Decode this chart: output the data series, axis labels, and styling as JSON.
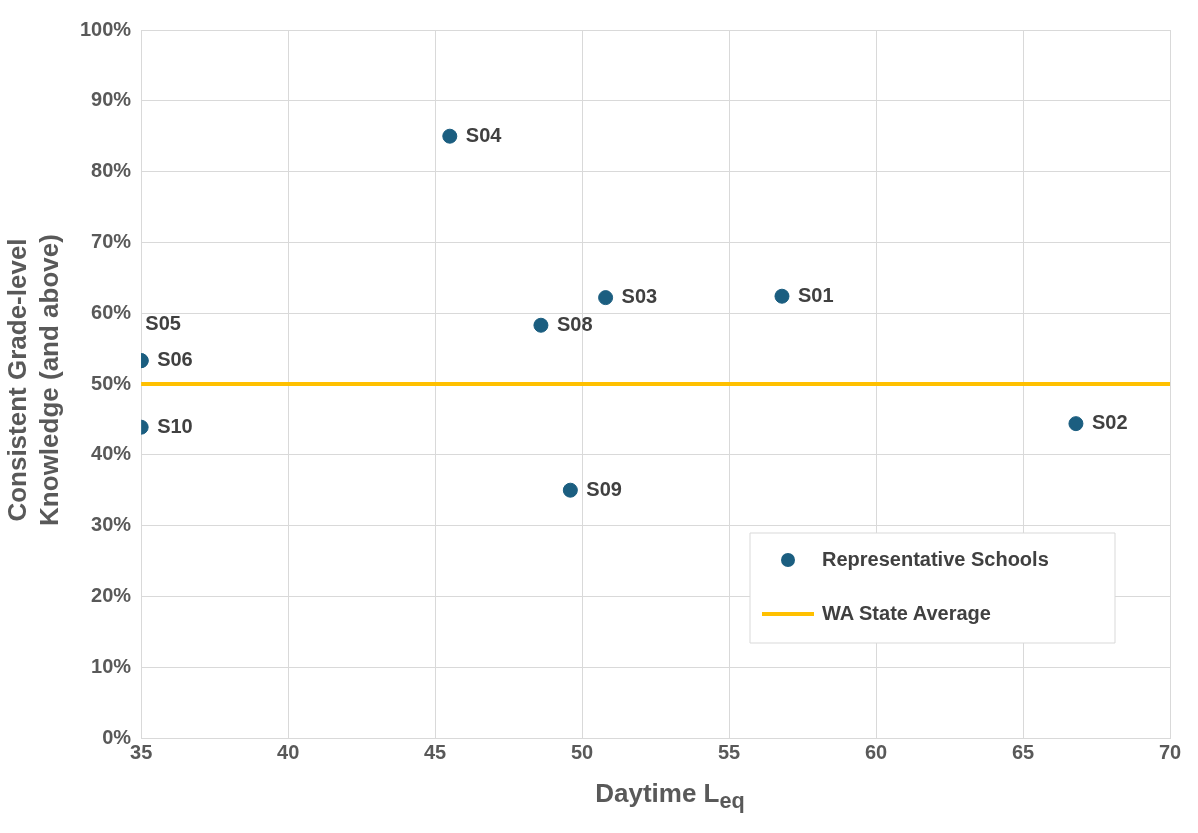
{
  "chart_data": {
    "type": "scatter",
    "xlabel": "Daytime L$_{eq}$",
    "ylabel": "Consistent Grade-level Knowledge (and above)",
    "series": [
      {
        "name": "Representative Schools",
        "color": "#1b5e80",
        "x": [
          56.8,
          66.8,
          50.8,
          45.5,
          35,
          35,
          48.6,
          49.6,
          35
        ],
        "values": [
          62.4,
          44.4,
          62.2,
          85.0,
          53.3,
          53.3,
          58.3,
          35.0,
          43.9
        ]
      }
    ],
    "annotations": [
      {
        "text": "S01",
        "x": 56.8,
        "y": 62.4
      },
      {
        "text": "S02",
        "x": 66.8,
        "y": 44.4
      },
      {
        "text": "S03",
        "x": 50.8,
        "y": 62.2
      },
      {
        "text": "S04",
        "x": 45.5,
        "y": 85.0
      },
      {
        "text": "S05",
        "x": 35,
        "y": 53.3
      },
      {
        "text": "S06",
        "x": 35,
        "y": 53.3
      },
      {
        "text": "S08",
        "x": 48.6,
        "y": 58.3
      },
      {
        "text": "S09",
        "x": 49.6,
        "y": 35.0
      },
      {
        "text": "S10",
        "x": 35,
        "y": 43.9
      }
    ],
    "ref_lines": [
      {
        "axis": "y",
        "value": 50,
        "label": "WA State Average",
        "color": "#ffc000"
      }
    ],
    "xlim": [
      35,
      70
    ],
    "xticks": [
      35,
      40,
      45,
      50,
      55,
      60,
      65,
      70
    ],
    "ylim": [
      0,
      100
    ],
    "yticks": [
      {
        "value": 0,
        "label": "0%"
      },
      {
        "value": 10,
        "label": "10%"
      },
      {
        "value": 20,
        "label": "20%"
      },
      {
        "value": 30,
        "label": "30%"
      },
      {
        "value": 40,
        "label": "40%"
      },
      {
        "value": 50,
        "label": "50%"
      },
      {
        "value": 60,
        "label": "60%"
      },
      {
        "value": 70,
        "label": "70%"
      },
      {
        "value": 80,
        "label": "80%"
      },
      {
        "value": 90,
        "label": "90%"
      },
      {
        "value": 100,
        "label": "100%"
      }
    ],
    "grid": true,
    "legend": "bottom right",
    "marker": "circle"
  }
}
